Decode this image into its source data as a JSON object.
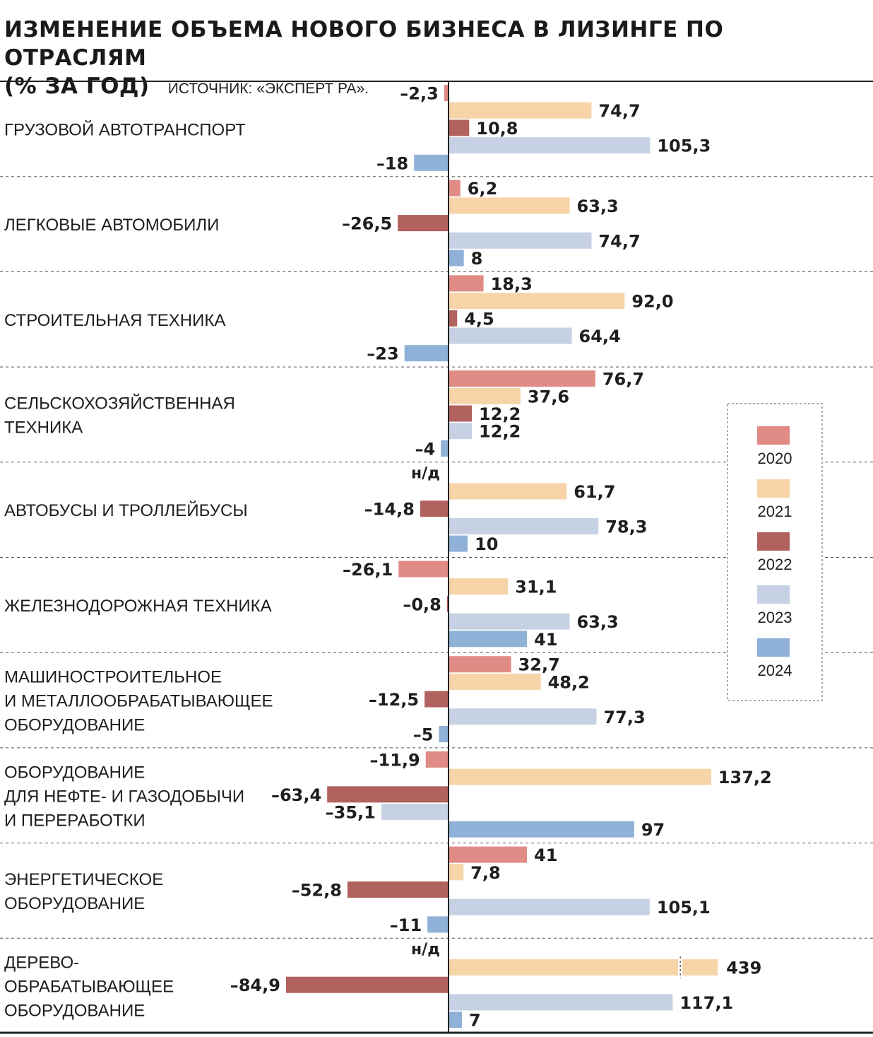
{
  "title_line1": "ИЗМЕНЕНИЕ ОБЪЕМА НОВОГО БИЗНЕСА В ЛИЗИНГЕ ПО ОТРАСЛЯМ",
  "title_line2": "(% ЗА ГОД)",
  "source": "ИСТОЧНИК: «ЭКСПЕРТ РА».",
  "colors": {
    "2020": "#e08b86",
    "2021": "#f6d4a8",
    "2022": "#b1615e",
    "2023": "#c6d1e3",
    "2024": "#8fb1d7"
  },
  "chart_data": {
    "type": "bar",
    "orientation": "horizontal",
    "unit": "% за год",
    "legend_position": "right",
    "grid": false,
    "series_names": [
      "2020",
      "2021",
      "2022",
      "2023",
      "2024"
    ],
    "categories": [
      {
        "label": [
          "ГРУЗОВОЙ АВТОТРАНСПОРТ"
        ],
        "values": [
          -2.3,
          74.7,
          10.8,
          105.3,
          -18
        ],
        "labels": [
          "–2,3",
          "74,7",
          "10,8",
          "105,3",
          "–18"
        ]
      },
      {
        "label": [
          "ЛЕГКОВЫЕ АВТОМОБИЛИ"
        ],
        "values": [
          6.2,
          63.3,
          -26.5,
          74.7,
          8
        ],
        "labels": [
          "6,2",
          "63,3",
          "–26,5",
          "74,7",
          "8"
        ]
      },
      {
        "label": [
          "СТРОИТЕЛЬНАЯ ТЕХНИКА"
        ],
        "values": [
          18.3,
          92.0,
          4.5,
          64.4,
          -23
        ],
        "labels": [
          "18,3",
          "92,0",
          "4,5",
          "64,4",
          "–23"
        ]
      },
      {
        "label": [
          "СЕЛЬСКОХОЗЯЙСТВЕННАЯ",
          "ТЕХНИКА"
        ],
        "values": [
          76.7,
          37.6,
          12.2,
          12.2,
          -4
        ],
        "labels": [
          "76,7",
          "37,6",
          "12,2",
          "12,2",
          "–4"
        ]
      },
      {
        "label": [
          "АВТОБУСЫ И ТРОЛЛЕЙБУСЫ"
        ],
        "values": [
          null,
          61.7,
          -14.8,
          78.3,
          10
        ],
        "labels": [
          "н/д",
          "61,7",
          "–14,8",
          "78,3",
          "10"
        ]
      },
      {
        "label": [
          "ЖЕЛЕЗНОДОРОЖНАЯ ТЕХНИКА"
        ],
        "values": [
          -26.1,
          31.1,
          -0.8,
          63.3,
          41
        ],
        "labels": [
          "–26,1",
          "31,1",
          "–0,8",
          "63,3",
          "41"
        ]
      },
      {
        "label": [
          "МАШИНОСТРОИТЕЛЬНОЕ",
          "И МЕТАЛЛООБРАБАТЫВАЮЩЕЕ",
          "ОБОРУДОВАНИЕ"
        ],
        "values": [
          32.7,
          48.2,
          -12.5,
          77.3,
          -5
        ],
        "labels": [
          "32,7",
          "48,2",
          "–12,5",
          "77,3",
          "–5"
        ]
      },
      {
        "label": [
          "ОБОРУДОВАНИЕ",
          "ДЛЯ НЕФТЕ- И ГАЗОДОБЫЧИ",
          "И ПЕРЕРАБОТКИ"
        ],
        "values": [
          -11.9,
          137.2,
          -63.4,
          -35.1,
          97
        ],
        "labels": [
          "–11,9",
          "137,2",
          "–63,4",
          "–35,1",
          "97"
        ]
      },
      {
        "label": [
          "ЭНЕРГЕТИЧЕСКОЕ",
          "ОБОРУДОВАНИЕ"
        ],
        "values": [
          41,
          7.8,
          -52.8,
          105.1,
          -11
        ],
        "labels": [
          "41",
          "7,8",
          "–52,8",
          "105,1",
          "–11"
        ]
      },
      {
        "label": [
          "ДЕРЕВО-",
          "ОБРАБАТЫВАЮЩЕЕ",
          "ОБОРУДОВАНИЕ"
        ],
        "values": [
          null,
          439,
          -84.9,
          117.1,
          7
        ],
        "labels": [
          "н/д",
          "439",
          "–84,9",
          "117,1",
          "7"
        ],
        "broken": [
          1
        ]
      }
    ]
  }
}
